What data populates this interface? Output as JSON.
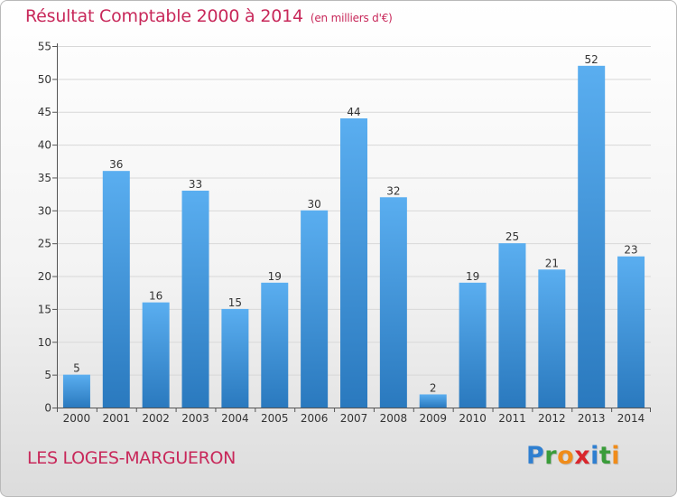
{
  "title": "Résultat Comptable 2000 à 2014",
  "unit_note": "(en milliers d'€)",
  "place_name": "LES LOGES-MARGUERON",
  "logo": {
    "text": "Proxiti",
    "letters": [
      {
        "ch": "P",
        "color": "#2f7fd0"
      },
      {
        "ch": "r",
        "color": "#3a9c3a"
      },
      {
        "ch": "o",
        "color": "#f08c1a"
      },
      {
        "ch": "x",
        "color": "#d9262c"
      },
      {
        "ch": "i",
        "color": "#2f7fd0"
      },
      {
        "ch": "t",
        "color": "#3a9c3a"
      },
      {
        "ch": "i",
        "color": "#f08c1a"
      }
    ]
  },
  "colors": {
    "accent": "#c8285a",
    "bar_top": "#5aaef0",
    "bar_bottom": "#2a79be",
    "grid": "#d8d8d8"
  },
  "chart_data": {
    "type": "bar",
    "title": "Résultat Comptable 2000 à 2014",
    "xlabel": "",
    "ylabel": "",
    "categories": [
      "2000",
      "2001",
      "2002",
      "2003",
      "2004",
      "2005",
      "2006",
      "2007",
      "2008",
      "2009",
      "2010",
      "2011",
      "2012",
      "2013",
      "2014"
    ],
    "values": [
      5,
      36,
      16,
      33,
      15,
      19,
      30,
      44,
      32,
      2,
      19,
      25,
      21,
      52,
      23
    ],
    "ylim": [
      0,
      55
    ],
    "yticks": [
      0,
      5,
      10,
      15,
      20,
      25,
      30,
      35,
      40,
      45,
      50,
      55
    ],
    "grid": true,
    "data_labels": true
  }
}
